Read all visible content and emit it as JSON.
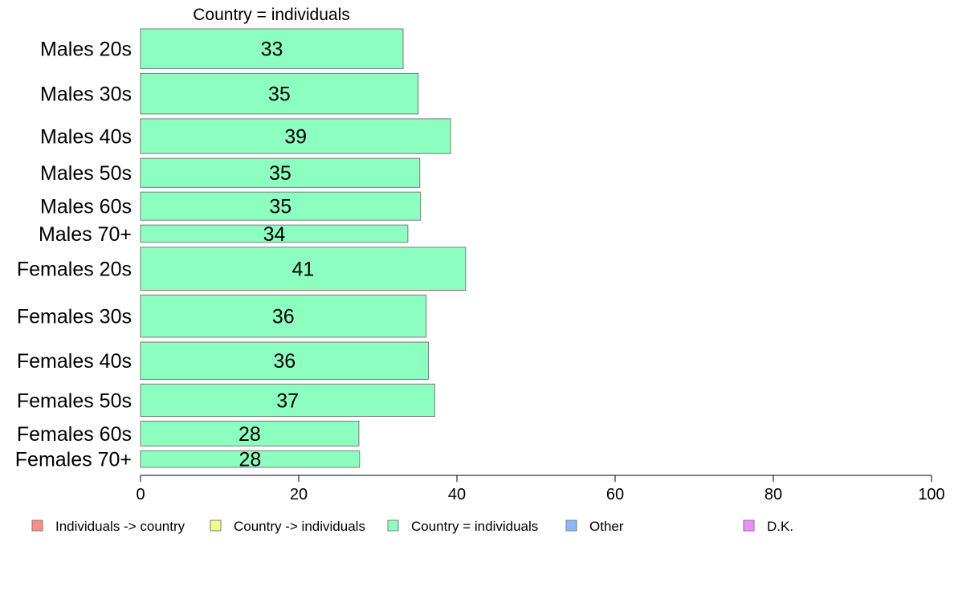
{
  "chart_data": {
    "type": "bar",
    "orientation": "horizontal",
    "title": "Country = individuals",
    "xlabel": "",
    "ylabel": "",
    "xlim": [
      0,
      100
    ],
    "x_ticks": [
      "0",
      "20",
      "40",
      "60",
      "80",
      "100"
    ],
    "grid": false,
    "legend_position": "bottom",
    "categories": [
      "Males 20s",
      "Males 30s",
      "Males 40s",
      "Males 50s",
      "Males 60s",
      "Males 70+",
      "Females 20s",
      "Females 30s",
      "Females 40s",
      "Females 50s",
      "Females 60s",
      "Females 70+"
    ],
    "values": [
      33.2,
      35.1,
      39.2,
      35.3,
      35.4,
      33.8,
      41.1,
      36.1,
      36.4,
      37.2,
      27.6,
      27.7
    ],
    "value_labels": [
      "33",
      "35",
      "39",
      "35",
      "35",
      "34",
      "41",
      "36",
      "36",
      "37",
      "28",
      "28"
    ],
    "relative_bar_thickness": [
      48,
      49,
      42,
      35,
      34,
      21,
      52,
      51,
      45,
      39,
      30,
      20
    ],
    "bar_color": "#8cffc0",
    "legend": [
      {
        "label": "Individuals -> country",
        "color": "#ff8c8c"
      },
      {
        "label": "Country -> individuals",
        "color": "#eeff8c"
      },
      {
        "label": "Country = individuals",
        "color": "#8cffc0"
      },
      {
        "label": "Other",
        "color": "#8cb8ff"
      },
      {
        "label": "D.K.",
        "color": "#ee8cff"
      }
    ]
  }
}
